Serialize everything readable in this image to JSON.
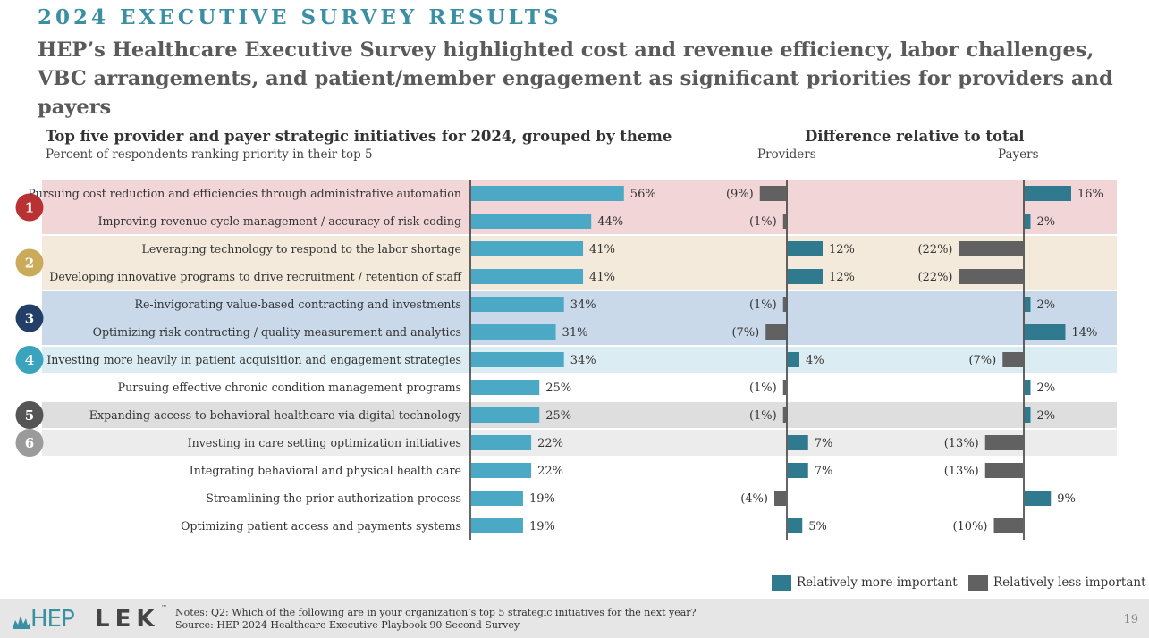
{
  "header": {
    "kicker": "2024 EXECUTIVE SURVEY RESULTS",
    "headline": "HEP’s Healthcare Executive Survey highlighted cost and revenue efficiency, labor challenges, VBC arrangements, and patient/member engagement as significant priorities for providers and payers"
  },
  "legend": {
    "more": "Relatively more important",
    "less": "Relatively less important"
  },
  "footer": {
    "notes": "Notes:  Q2: Which of the following are in your organization’s top 5 strategic initiatives for the next year?",
    "source": "Source: HEP 2024 Healthcare Executive Playbook 90 Second Survey",
    "page": "19",
    "logo_left": "HEP",
    "logo_right": "LEK",
    "logo_tm": "™"
  },
  "colors": {
    "bar": "#4ba9c6",
    "more": "#2f7a8e",
    "less": "#616161",
    "theme1": "#f2d5d6",
    "theme2": "#f3eadb",
    "theme3": "#cad9ea",
    "theme4": "#dbedf3",
    "theme5": "#dedede",
    "theme6": "#ececec",
    "badge1": "#b83234",
    "badge2": "#c9ab59",
    "badge3": "#243f67",
    "badge4": "#3aa3bd",
    "badge5": "#555555",
    "badge6": "#9b9b9b"
  },
  "chart_data": {
    "type": "bar",
    "title": "Top five provider and payer strategic initiatives for 2024, grouped by theme",
    "subtitle": "Percent of respondents ranking priority in their top 5",
    "diff_title": "Difference relative to total",
    "diff_columns": [
      "Providers",
      "Payers"
    ],
    "categories": [
      "Pursuing cost reduction and efficiencies through administrative automation",
      "Improving revenue cycle management / accuracy of risk coding",
      "Leveraging technology to respond to the labor shortage",
      "Developing innovative programs to drive recruitment / retention of staff",
      "Re-invigorating value-based contracting and investments",
      "Optimizing risk contracting / quality measurement and analytics",
      "Investing more heavily in patient acquisition and engagement strategies",
      "Pursuing effective chronic condition management programs",
      "Expanding access to behavioral healthcare via digital technology",
      "Investing in care setting optimization initiatives",
      "Integrating behavioral and physical health care",
      "Streamlining the prior authorization process",
      "Optimizing patient access and payments systems"
    ],
    "values": [
      56,
      44,
      41,
      41,
      34,
      31,
      34,
      25,
      25,
      22,
      22,
      19,
      19
    ],
    "value_labels": [
      "56%",
      "44%",
      "41%",
      "41%",
      "34%",
      "31%",
      "34%",
      "25%",
      "25%",
      "22%",
      "22%",
      "19%",
      "19%"
    ],
    "providers_diff": [
      -9,
      -1,
      12,
      12,
      -1,
      -7,
      4,
      -1,
      -1,
      7,
      7,
      -4,
      5
    ],
    "providers_labels": [
      "(9%)",
      "(1%)",
      "12%",
      "12%",
      "(1%)",
      "(7%)",
      "4%",
      "(1%)",
      "(1%)",
      "7%",
      "7%",
      "(4%)",
      "5%"
    ],
    "payers_diff": [
      16,
      2,
      -22,
      -22,
      2,
      14,
      -7,
      2,
      2,
      -13,
      -13,
      9,
      -10
    ],
    "payers_labels": [
      "16%",
      "2%",
      "(22%)",
      "(22%)",
      "2%",
      "14%",
      "(7%)",
      "2%",
      "2%",
      "(13%)",
      "(13%)",
      "9%",
      "(10%)"
    ],
    "themes": [
      {
        "badge": "1",
        "start": 0,
        "count": 2
      },
      {
        "badge": "2",
        "start": 2,
        "count": 2
      },
      {
        "badge": "3",
        "start": 4,
        "count": 2
      },
      {
        "badge": "4",
        "start": 6,
        "count": 1
      },
      {
        "badge": "5",
        "start": 8,
        "count": 1
      },
      {
        "badge": "6",
        "start": 9,
        "count": 1
      }
    ]
  }
}
